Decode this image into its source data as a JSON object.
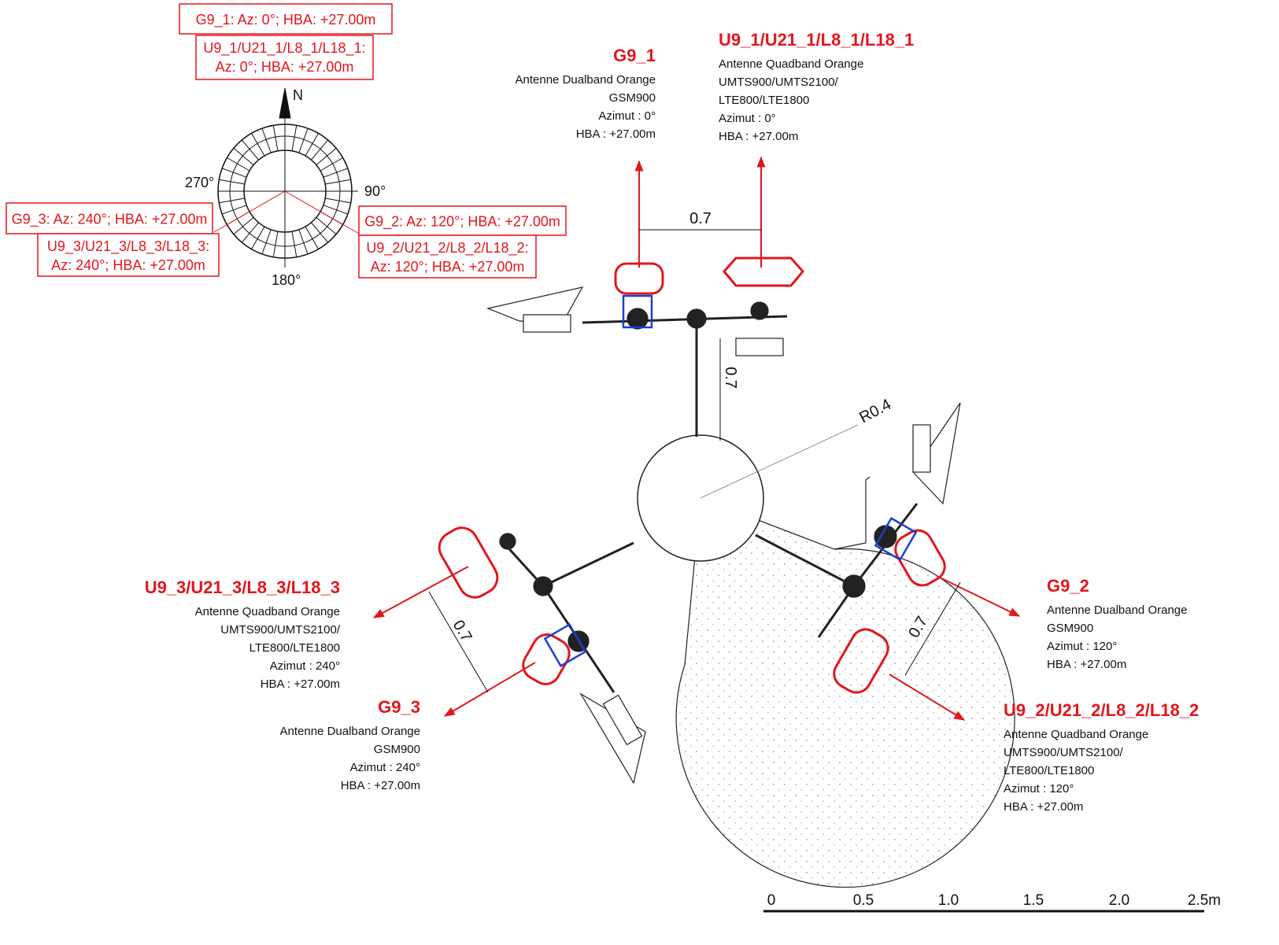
{
  "compass": {
    "north": "N",
    "east": "90°",
    "south": "180°",
    "west": "270°"
  },
  "azimuth_boxes": [
    {
      "gsm": "G9_1: Az: 0°; HBA: +27.00m",
      "quad": [
        "U9_1/U21_1/L8_1/L18_1:",
        "Az: 0°; HBA: +27.00m"
      ]
    },
    {
      "gsm": "G9_2: Az: 120°; HBA: +27.00m",
      "quad": [
        "U9_2/U21_2/L8_2/L18_2:",
        "Az: 120°; HBA: +27.00m"
      ]
    },
    {
      "gsm": "G9_3: Az: 240°; HBA: +27.00m",
      "quad": [
        "U9_3/U21_3/L8_3/L18_3:",
        "Az: 240°; HBA: +27.00m"
      ]
    }
  ],
  "antennas": [
    {
      "name": "G9_1",
      "lines": [
        "Antenne Dualband Orange",
        "GSM900",
        "Azimut : 0°",
        "HBA : +27.00m"
      ]
    },
    {
      "name": "U9_1/U21_1/L8_1/L18_1",
      "lines": [
        "Antenne Quadband Orange",
        "UMTS900/UMTS2100/",
        "LTE800/LTE1800",
        "Azimut : 0°",
        "HBA : +27.00m"
      ]
    },
    {
      "name": "G9_2",
      "lines": [
        "Antenne Dualband Orange",
        "GSM900",
        "Azimut : 120°",
        "HBA : +27.00m"
      ]
    },
    {
      "name": "U9_2/U21_2/L8_2/L18_2",
      "lines": [
        "Antenne Quadband Orange",
        "UMTS900/UMTS2100/",
        "LTE800/LTE1800",
        "Azimut : 120°",
        "HBA : +27.00m"
      ]
    },
    {
      "name": "U9_3/U21_3/L8_3/L18_3",
      "lines": [
        "Antenne Quadband Orange",
        "UMTS900/UMTS2100/",
        "LTE800/LTE1800",
        "Azimut : 240°",
        "HBA : +27.00m"
      ]
    },
    {
      "name": "G9_3",
      "lines": [
        "Antenne Dualband Orange",
        "GSM900",
        "Azimut : 240°",
        "HBA : +27.00m"
      ]
    }
  ],
  "dimensions": [
    "0.7",
    "0.7",
    "0.7",
    "0.7"
  ],
  "radius_label": "R0.4",
  "scale_bar": {
    "labels": [
      "0",
      "0.5",
      "1.0",
      "1.5",
      "2.0",
      "2.5m"
    ]
  }
}
